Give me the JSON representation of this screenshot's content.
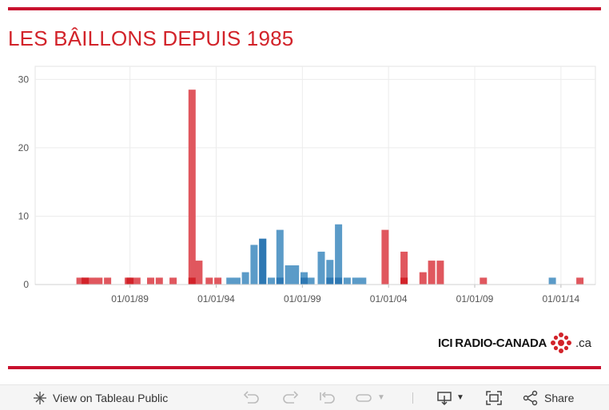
{
  "title": "LES BÂILLONS DEPUIS 1985",
  "colors": {
    "red": "#d2232a",
    "red_bar": "#e0575e",
    "blue_bar": "#5b9bc8",
    "blue_dark": "#2e78b3"
  },
  "brand": {
    "ici": "ICI",
    "rest": "RADIO-CANADA",
    "suffix": ".ca"
  },
  "toolbar": {
    "view_label": "View on Tableau Public",
    "share_label": "Share",
    "icons": [
      "expand-icon",
      "undo-icon",
      "redo-icon",
      "revert-icon",
      "pause-icon",
      "download-icon",
      "fullscreen-icon",
      "share-icon"
    ]
  },
  "chart_data": {
    "type": "bar",
    "x_ticks": [
      "01/01/89",
      "01/01/94",
      "01/01/99",
      "01/01/04",
      "01/01/09",
      "01/01/14"
    ],
    "y_ticks": [
      "0",
      "10",
      "20",
      "30"
    ],
    "ylim": [
      0,
      30
    ],
    "xlim": [
      1983.5,
      2016.0
    ],
    "grid": true,
    "series": [
      {
        "color": "red",
        "points": [
          [
            1986.1,
            1
          ],
          [
            1986.4,
            1
          ],
          [
            1986.8,
            1
          ],
          [
            1987.2,
            1
          ],
          [
            1987.7,
            1
          ],
          [
            1988.9,
            1
          ],
          [
            1989.4,
            1
          ],
          [
            1990.2,
            1
          ],
          [
            1990.7,
            1
          ],
          [
            1991.5,
            1
          ],
          [
            1992.6,
            28.5
          ],
          [
            1993.0,
            3.5
          ],
          [
            1993.6,
            1
          ],
          [
            1994.1,
            1
          ],
          [
            2003.8,
            8
          ],
          [
            2004.9,
            4.8
          ],
          [
            2006.0,
            1.8
          ],
          [
            2006.5,
            3.5
          ],
          [
            2007.0,
            3.5
          ],
          [
            2009.5,
            1
          ],
          [
            2015.1,
            1
          ]
        ]
      },
      {
        "color": "blue",
        "points": [
          [
            1994.8,
            1
          ],
          [
            1995.2,
            1
          ],
          [
            1995.7,
            1.8
          ],
          [
            1996.2,
            5.8
          ],
          [
            1996.7,
            6.7
          ],
          [
            1997.2,
            1
          ],
          [
            1997.7,
            8
          ],
          [
            1998.2,
            2.8
          ],
          [
            1998.6,
            2.8
          ],
          [
            1999.1,
            1.8
          ],
          [
            1999.5,
            1
          ],
          [
            2000.1,
            4.8
          ],
          [
            2000.6,
            3.6
          ],
          [
            2001.1,
            8.8
          ],
          [
            2001.6,
            1
          ],
          [
            2002.1,
            1
          ],
          [
            2002.5,
            1
          ],
          [
            2013.5,
            1
          ]
        ]
      },
      {
        "color": "blue_dark",
        "points": [
          [
            1996.7,
            6.7
          ],
          [
            1997.7,
            1
          ],
          [
            1999.1,
            1
          ],
          [
            2000.6,
            1
          ],
          [
            2001.1,
            1
          ]
        ]
      },
      {
        "color": "red_dark",
        "points": [
          [
            1986.4,
            1
          ],
          [
            1989.0,
            1
          ],
          [
            1992.6,
            1
          ],
          [
            2004.9,
            1
          ]
        ]
      }
    ]
  }
}
